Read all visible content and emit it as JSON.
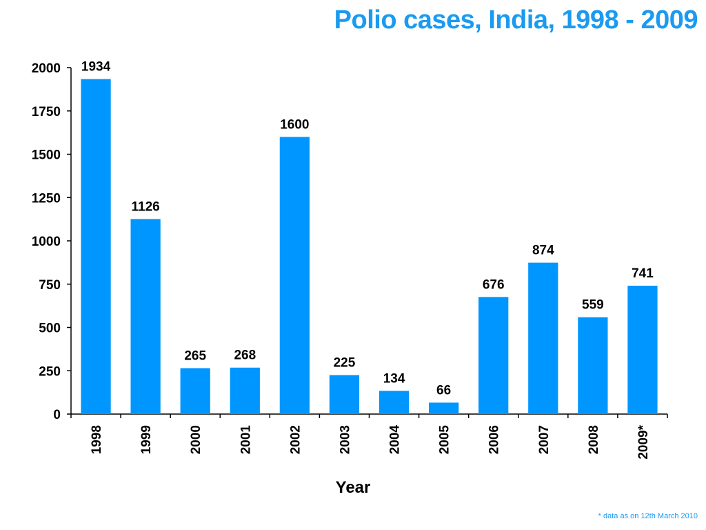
{
  "colors": {
    "title": "#1a9af0",
    "bar": "#0096ff",
    "footnote": "#1a9af0",
    "axis": "#000000"
  },
  "chart_data": {
    "type": "bar",
    "title": "Polio cases, India, 1998 - 2009",
    "xlabel": "Year",
    "ylabel": "",
    "categories": [
      "1998",
      "1999",
      "2000",
      "2001",
      "2002",
      "2003",
      "2004",
      "2005",
      "2006",
      "2007",
      "2008",
      "2009*"
    ],
    "values": [
      1934,
      1126,
      265,
      268,
      1600,
      225,
      134,
      66,
      676,
      874,
      559,
      741
    ],
    "data_labels": [
      "1934",
      "1126",
      "265",
      "268",
      "1600",
      "225",
      "134",
      "66",
      "676",
      "874",
      "559",
      "741"
    ],
    "ylim": [
      0,
      2000
    ],
    "yticks": [
      0,
      250,
      500,
      750,
      1000,
      1250,
      1500,
      1750,
      2000
    ],
    "grid": false,
    "legend": "none",
    "footnote": "* data as on 12th March 2010"
  }
}
